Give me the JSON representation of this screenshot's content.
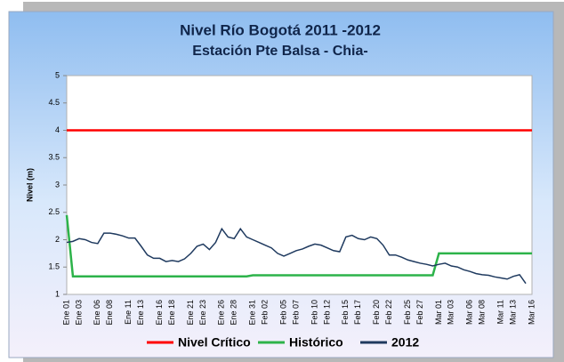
{
  "chart_data": {
    "type": "line",
    "title": "Nivel Río Bogotá 2011 -2012",
    "subtitle": "Estación Pte Balsa - Chia-",
    "y_label": "Nivel (m)",
    "ylim": [
      1,
      5
    ],
    "yticks": [
      1,
      1.5,
      2,
      2.5,
      3,
      3.5,
      4,
      4.5,
      5
    ],
    "legend": "bottom",
    "categories": [
      "Ene 01",
      null,
      "Ene 03",
      null,
      null,
      "Ene 06",
      null,
      "Ene 08",
      null,
      null,
      "Ene 11",
      null,
      "Ene 13",
      null,
      null,
      "Ene 16",
      null,
      "Ene 18",
      null,
      null,
      "Ene 21",
      null,
      "Ene 23",
      null,
      null,
      "Ene 26",
      null,
      "Ene 28",
      null,
      null,
      "Ene 31",
      null,
      "Feb 02",
      null,
      null,
      "Feb 05",
      null,
      "Feb 07",
      null,
      null,
      "Feb 10",
      null,
      "Feb 12",
      null,
      null,
      "Feb 15",
      null,
      "Feb 17",
      null,
      null,
      "Feb 20",
      null,
      "Feb 22",
      null,
      null,
      "Feb 25",
      null,
      "Feb 27",
      null,
      null,
      "Mar 01",
      null,
      "Mar 03",
      null,
      null,
      "Mar 06",
      null,
      "Mar 08",
      null,
      null,
      "Mar 11",
      null,
      "Mar 13",
      null,
      null,
      "Mar 16"
    ],
    "series": [
      {
        "name": "Nivel Crítico",
        "color": "#ff0000",
        "values": [
          4,
          4,
          4,
          4,
          4,
          4,
          4,
          4,
          4,
          4,
          4,
          4,
          4,
          4,
          4,
          4,
          4,
          4,
          4,
          4,
          4,
          4,
          4,
          4,
          4,
          4,
          4,
          4,
          4,
          4,
          4,
          4,
          4,
          4,
          4,
          4,
          4,
          4,
          4,
          4,
          4,
          4,
          4,
          4,
          4,
          4,
          4,
          4,
          4,
          4,
          4,
          4,
          4,
          4,
          4,
          4,
          4,
          4,
          4,
          4,
          4,
          4,
          4,
          4,
          4,
          4,
          4,
          4,
          4,
          4,
          4,
          4,
          4,
          4,
          4,
          4
        ]
      },
      {
        "name": "Histórico",
        "color": "#2db34a",
        "values": [
          2.45,
          1.33,
          1.33,
          1.33,
          1.33,
          1.33,
          1.33,
          1.33,
          1.33,
          1.33,
          1.33,
          1.33,
          1.33,
          1.33,
          1.33,
          1.33,
          1.33,
          1.33,
          1.33,
          1.33,
          1.33,
          1.33,
          1.33,
          1.33,
          1.33,
          1.33,
          1.33,
          1.33,
          1.33,
          1.33,
          1.35,
          1.35,
          1.35,
          1.35,
          1.35,
          1.35,
          1.35,
          1.35,
          1.35,
          1.35,
          1.35,
          1.35,
          1.35,
          1.35,
          1.35,
          1.35,
          1.35,
          1.35,
          1.35,
          1.35,
          1.35,
          1.35,
          1.35,
          1.35,
          1.35,
          1.35,
          1.35,
          1.35,
          1.35,
          1.35,
          1.75,
          1.75,
          1.75,
          1.75,
          1.75,
          1.75,
          1.75,
          1.75,
          1.75,
          1.75,
          1.75,
          1.75,
          1.75,
          1.75,
          1.75,
          1.75
        ]
      },
      {
        "name": "2012",
        "color": "#1f3a5f",
        "values": [
          1.95,
          1.97,
          2.02,
          2.0,
          1.95,
          1.93,
          2.12,
          2.12,
          2.1,
          2.07,
          2.03,
          2.03,
          1.88,
          1.72,
          1.66,
          1.66,
          1.6,
          1.62,
          1.6,
          1.65,
          1.75,
          1.88,
          1.92,
          1.82,
          1.95,
          2.2,
          2.05,
          2.02,
          2.2,
          2.05,
          2.0,
          1.95,
          1.9,
          1.85,
          1.75,
          1.7,
          1.75,
          1.8,
          1.83,
          1.88,
          1.92,
          1.9,
          1.85,
          1.8,
          1.78,
          2.05,
          2.08,
          2.02,
          2.0,
          2.05,
          2.02,
          1.9,
          1.72,
          1.72,
          1.68,
          1.63,
          1.6,
          1.57,
          1.55,
          1.52,
          1.55,
          1.57,
          1.52,
          1.5,
          1.45,
          1.42,
          1.38,
          1.36,
          1.35,
          1.32,
          1.3,
          1.28,
          1.33,
          1.36,
          1.2,
          null
        ]
      }
    ]
  }
}
